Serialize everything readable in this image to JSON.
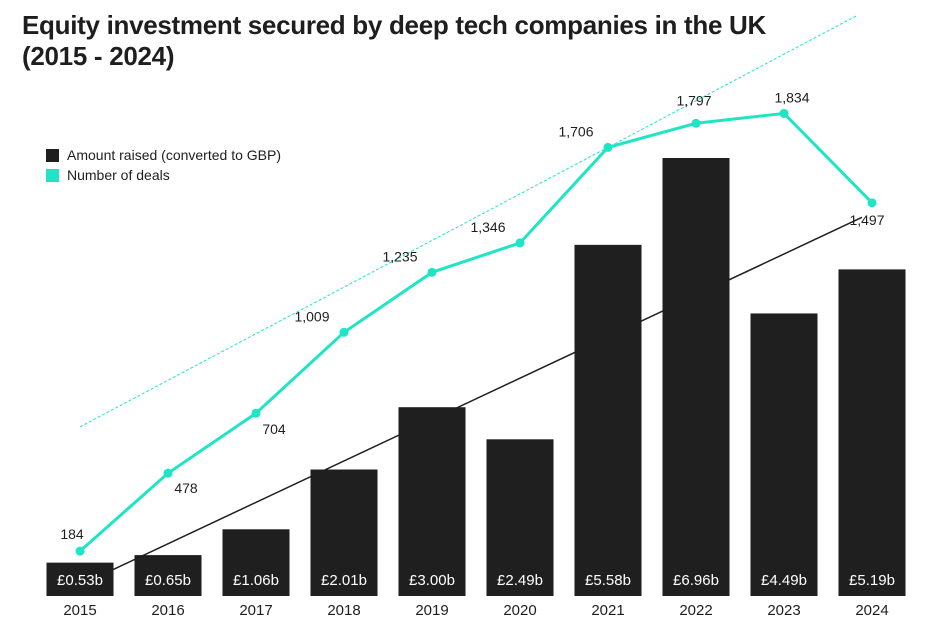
{
  "title": {
    "line1": "Equity investment secured by deep tech companies in the UK",
    "line2": "(2015 - 2024)"
  },
  "colors": {
    "bar": "#1e1f1e",
    "line": "#1ee6c4",
    "trend_bar": "#1e1f1e",
    "trend_line": "#1ee6c4",
    "bar_label": "#ffffff",
    "text": "#1e1e1e"
  },
  "legend": {
    "amount_label": "Amount raised (converted to GBP)",
    "deals_label": "Number of deals"
  },
  "chart_data": {
    "type": "bar",
    "title": "Equity investment secured by deep tech companies in the UK (2015 - 2024)",
    "xlabel": "",
    "ylabel": "",
    "categories": [
      "2015",
      "2016",
      "2017",
      "2018",
      "2019",
      "2020",
      "2021",
      "2022",
      "2023",
      "2024"
    ],
    "series": [
      {
        "name": "Amount raised (converted to GBP)",
        "type": "bar",
        "unit": "GBP billions",
        "values": [
          0.53,
          0.65,
          1.06,
          2.01,
          3.0,
          2.49,
          5.58,
          6.96,
          4.49,
          5.19
        ],
        "labels": [
          "£0.53b",
          "£0.65b",
          "£1.06b",
          "£2.01b",
          "£3.00b",
          "£2.49b",
          "£5.58b",
          "£6.96b",
          "£4.49b",
          "£5.19b"
        ]
      },
      {
        "name": "Number of deals",
        "type": "line",
        "values": [
          184,
          478,
          704,
          1009,
          1235,
          1346,
          1706,
          1797,
          1834,
          1497
        ],
        "labels": [
          "184",
          "478",
          "704",
          "1,009",
          "1,235",
          "1,346",
          "1,706",
          "1,797",
          "1,834",
          "1,497"
        ]
      }
    ],
    "trendlines": [
      {
        "series": "Amount raised (converted to GBP)",
        "style": "solid"
      },
      {
        "series": "Number of deals",
        "style": "dashed"
      }
    ],
    "y_bar_range": [
      0,
      7.6
    ],
    "y_line_range": [
      0,
      2100
    ],
    "grid": false,
    "legend_position": "top-left"
  }
}
